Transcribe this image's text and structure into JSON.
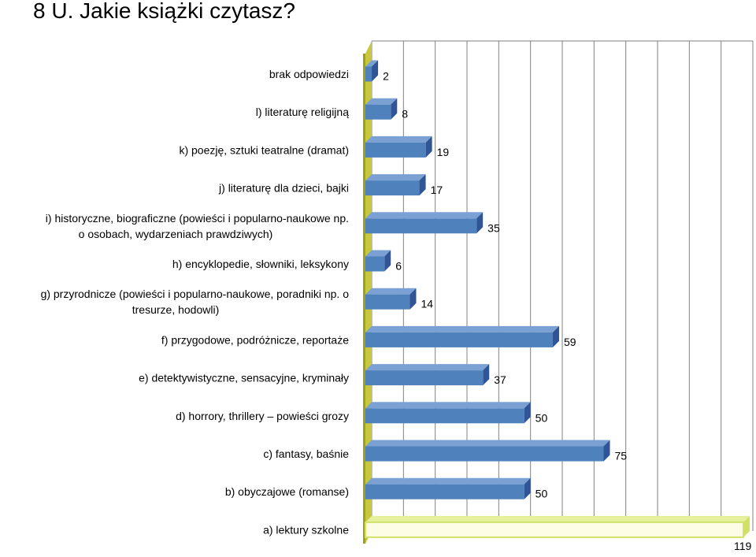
{
  "title": "8 U. Jakie książki czytasz?",
  "chart_data": {
    "type": "bar",
    "orientation": "horizontal",
    "style": "3d",
    "title": "8 U. Jakie książki czytasz?",
    "categories": [
      "brak odpowiedzi",
      "l) literaturę religijną",
      "k) poezję, sztuki teatralne (dramat)",
      "j) literaturę dla dzieci, bajki",
      "i) historyczne, biograficzne (powieści i popularno-naukowe np. o osobach, wydarzeniach prawdziwych)",
      "h) encyklopedie, słowniki, leksykony",
      "g) przyrodnicze (powieści i popularno-naukowe, poradniki np. o tresurze, hodowli)",
      "f) przygodowe, podróżnicze, reportaże",
      "e) detektywistyczne, sensacyjne, kryminały",
      "d) horrory, thrillery – powieści grozy",
      "c) fantasy, baśnie",
      "b) obyczajowe (romanse)",
      "a) lektury szkolne"
    ],
    "label_lines": [
      [
        "brak odpowiedzi"
      ],
      [
        "l) literaturę religijną"
      ],
      [
        "k) poezję, sztuki teatralne (dramat)"
      ],
      [
        "j) literaturę dla dzieci, bajki"
      ],
      [
        "i) historyczne, biograficzne (powieści i popularno-naukowe np.",
        "o osobach, wydarzeniach prawdziwych)"
      ],
      [
        "h) encyklopedie, słowniki, leksykony"
      ],
      [
        "g) przyrodnicze (powieści i popularno-naukowe, poradniki np. o",
        "tresurze, hodowli)"
      ],
      [
        "f) przygodowe, podróżnicze, reportaże"
      ],
      [
        "e) detektywistyczne, sensacyjne, kryminały"
      ],
      [
        "d) horrory, thrillery – powieści grozy"
      ],
      [
        "c) fantasy, baśnie"
      ],
      [
        "b) obyczajowe (romanse)"
      ],
      [
        "a) lektury szkolne"
      ]
    ],
    "values": [
      2,
      8,
      19,
      17,
      35,
      6,
      14,
      59,
      37,
      50,
      75,
      50,
      119
    ],
    "highlight_index": 12,
    "xlim": [
      0,
      120
    ],
    "grid": true,
    "colors": {
      "bar_front": "#4f81bd",
      "bar_top": "#7ba0d3",
      "bar_side": "#2f5597",
      "highlight_front": "#fdfde5",
      "highlight_border": "#cfe26a",
      "highlight_top": "#e6ef9c",
      "highlight_side": "#d2e061",
      "wall_front": "#9fa01a",
      "wall_side": "#c7c840",
      "gridline": "#808080"
    }
  }
}
